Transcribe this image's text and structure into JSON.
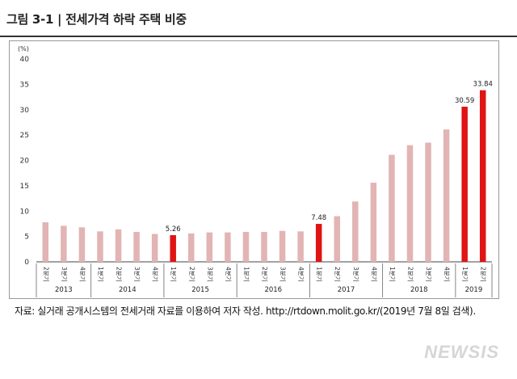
{
  "header": {
    "title": "그림 3-1 | 전세가격 하락 주택 비중"
  },
  "source": "자료: 실거래 공개시스템의 전세거래 자료를 이용하여 저자 작성. http://rtdown.molit.go.kr/(2019년 7월 8일 검색).",
  "watermark": "NEWSIS",
  "colors": {
    "normal_bar": "#e2b4b4",
    "highlight_bar": "#e01414",
    "axis": "#333333"
  },
  "chart_data": {
    "type": "bar",
    "title": "",
    "ylabel": "(%)",
    "xlabel": "",
    "ylim": [
      0,
      40
    ],
    "yticks": [
      0,
      5,
      10,
      15,
      20,
      25,
      30,
      35,
      40
    ],
    "grid": false,
    "categories": [
      "2분기",
      "3분기",
      "4분기",
      "1분기",
      "2분기",
      "3분기",
      "4분기",
      "1분기",
      "2분기",
      "3분기",
      "4분기",
      "1분기",
      "2분기",
      "3분기",
      "4분기",
      "1분기",
      "2분기",
      "3분기",
      "4분기",
      "1분기",
      "2분기",
      "3분기",
      "4분기",
      "1분기",
      "2분기"
    ],
    "values": [
      7.8,
      7.1,
      6.8,
      6.0,
      6.4,
      5.9,
      5.5,
      5.26,
      5.6,
      5.8,
      5.8,
      5.9,
      5.9,
      6.1,
      6.0,
      7.48,
      9.0,
      11.9,
      15.6,
      21.1,
      23.0,
      23.5,
      26.1,
      30.59,
      33.84
    ],
    "highlighted": [
      7,
      15,
      23,
      24
    ],
    "data_labels": [
      {
        "index": 7,
        "text": "5.26"
      },
      {
        "index": 15,
        "text": "7.48"
      },
      {
        "index": 23,
        "text": "30.59"
      },
      {
        "index": 24,
        "text": "33.84"
      }
    ],
    "years": [
      {
        "label": "2013",
        "start": 0,
        "end": 2
      },
      {
        "label": "2014",
        "start": 3,
        "end": 6
      },
      {
        "label": "2015",
        "start": 7,
        "end": 10
      },
      {
        "label": "2016",
        "start": 11,
        "end": 14
      },
      {
        "label": "2017",
        "start": 15,
        "end": 18
      },
      {
        "label": "2018",
        "start": 19,
        "end": 22
      },
      {
        "label": "2019",
        "start": 23,
        "end": 24
      }
    ]
  }
}
